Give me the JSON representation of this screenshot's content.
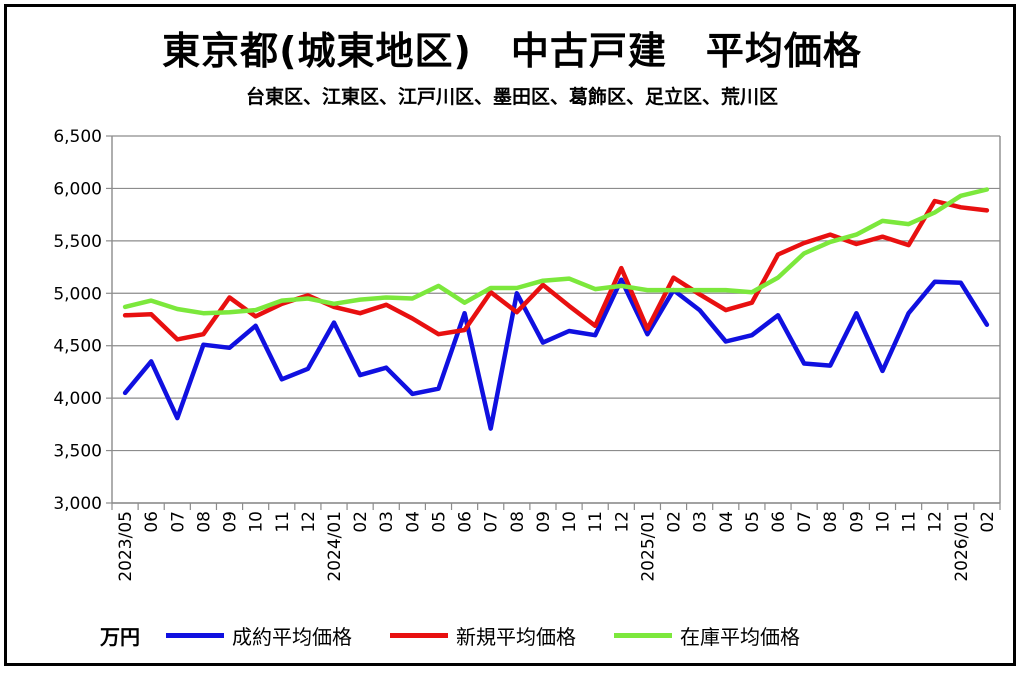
{
  "title": "東京都(城東地区)　中古戸建　平均価格",
  "subtitle": "台東区、江東区、江戸川区、墨田区、葛飾区、足立区、荒川区",
  "unit": "万円",
  "chart_data": {
    "type": "line",
    "ylim": [
      3000,
      6500
    ],
    "yticks": [
      3000,
      3500,
      4000,
      4500,
      5000,
      5500,
      6000,
      6500
    ],
    "ytick_labels": [
      "3,000",
      "3,500",
      "4,000",
      "4,500",
      "5,000",
      "5,500",
      "6,000",
      "6,500"
    ],
    "grid": true,
    "legend_position": "bottom",
    "x_labels": [
      "2023/05",
      "06",
      "07",
      "08",
      "09",
      "10",
      "11",
      "12",
      "2024/01",
      "02",
      "03",
      "04",
      "05",
      "06",
      "07",
      "08",
      "09",
      "10",
      "11",
      "12",
      "2025/01",
      "02",
      "03",
      "04",
      "05",
      "06",
      "07",
      "08",
      "09",
      "10",
      "11",
      "12",
      "2026/01",
      "02"
    ],
    "series": [
      {
        "name": "成約平均価格",
        "color": "#1010e0",
        "values": [
          4050,
          4350,
          3810,
          4510,
          4480,
          4690,
          4180,
          4280,
          4720,
          4220,
          4290,
          4040,
          4090,
          4810,
          3710,
          5000,
          4530,
          4640,
          4600,
          5130,
          4610,
          5030,
          4840,
          4540,
          4600,
          4790,
          4330,
          4310,
          4810,
          4260,
          4810,
          5110,
          5100,
          4700
        ]
      },
      {
        "name": "新規平均価格",
        "color": "#e81010",
        "values": [
          4790,
          4800,
          4560,
          4610,
          4960,
          4780,
          4900,
          4980,
          4870,
          4810,
          4890,
          4760,
          4610,
          4650,
          5010,
          4820,
          5080,
          4880,
          4690,
          5240,
          4660,
          5150,
          4990,
          4840,
          4910,
          5370,
          5480,
          5560,
          5470,
          5540,
          5460,
          5880,
          5820,
          5790
        ]
      },
      {
        "name": "在庫平均価格",
        "color": "#7ce83c",
        "values": [
          4870,
          4930,
          4850,
          4810,
          4820,
          4840,
          4930,
          4950,
          4900,
          4940,
          4960,
          4950,
          5070,
          4910,
          5050,
          5050,
          5120,
          5140,
          5040,
          5070,
          5030,
          5030,
          5030,
          5030,
          5010,
          5150,
          5380,
          5490,
          5560,
          5690,
          5660,
          5770,
          5930,
          5990
        ]
      }
    ]
  }
}
